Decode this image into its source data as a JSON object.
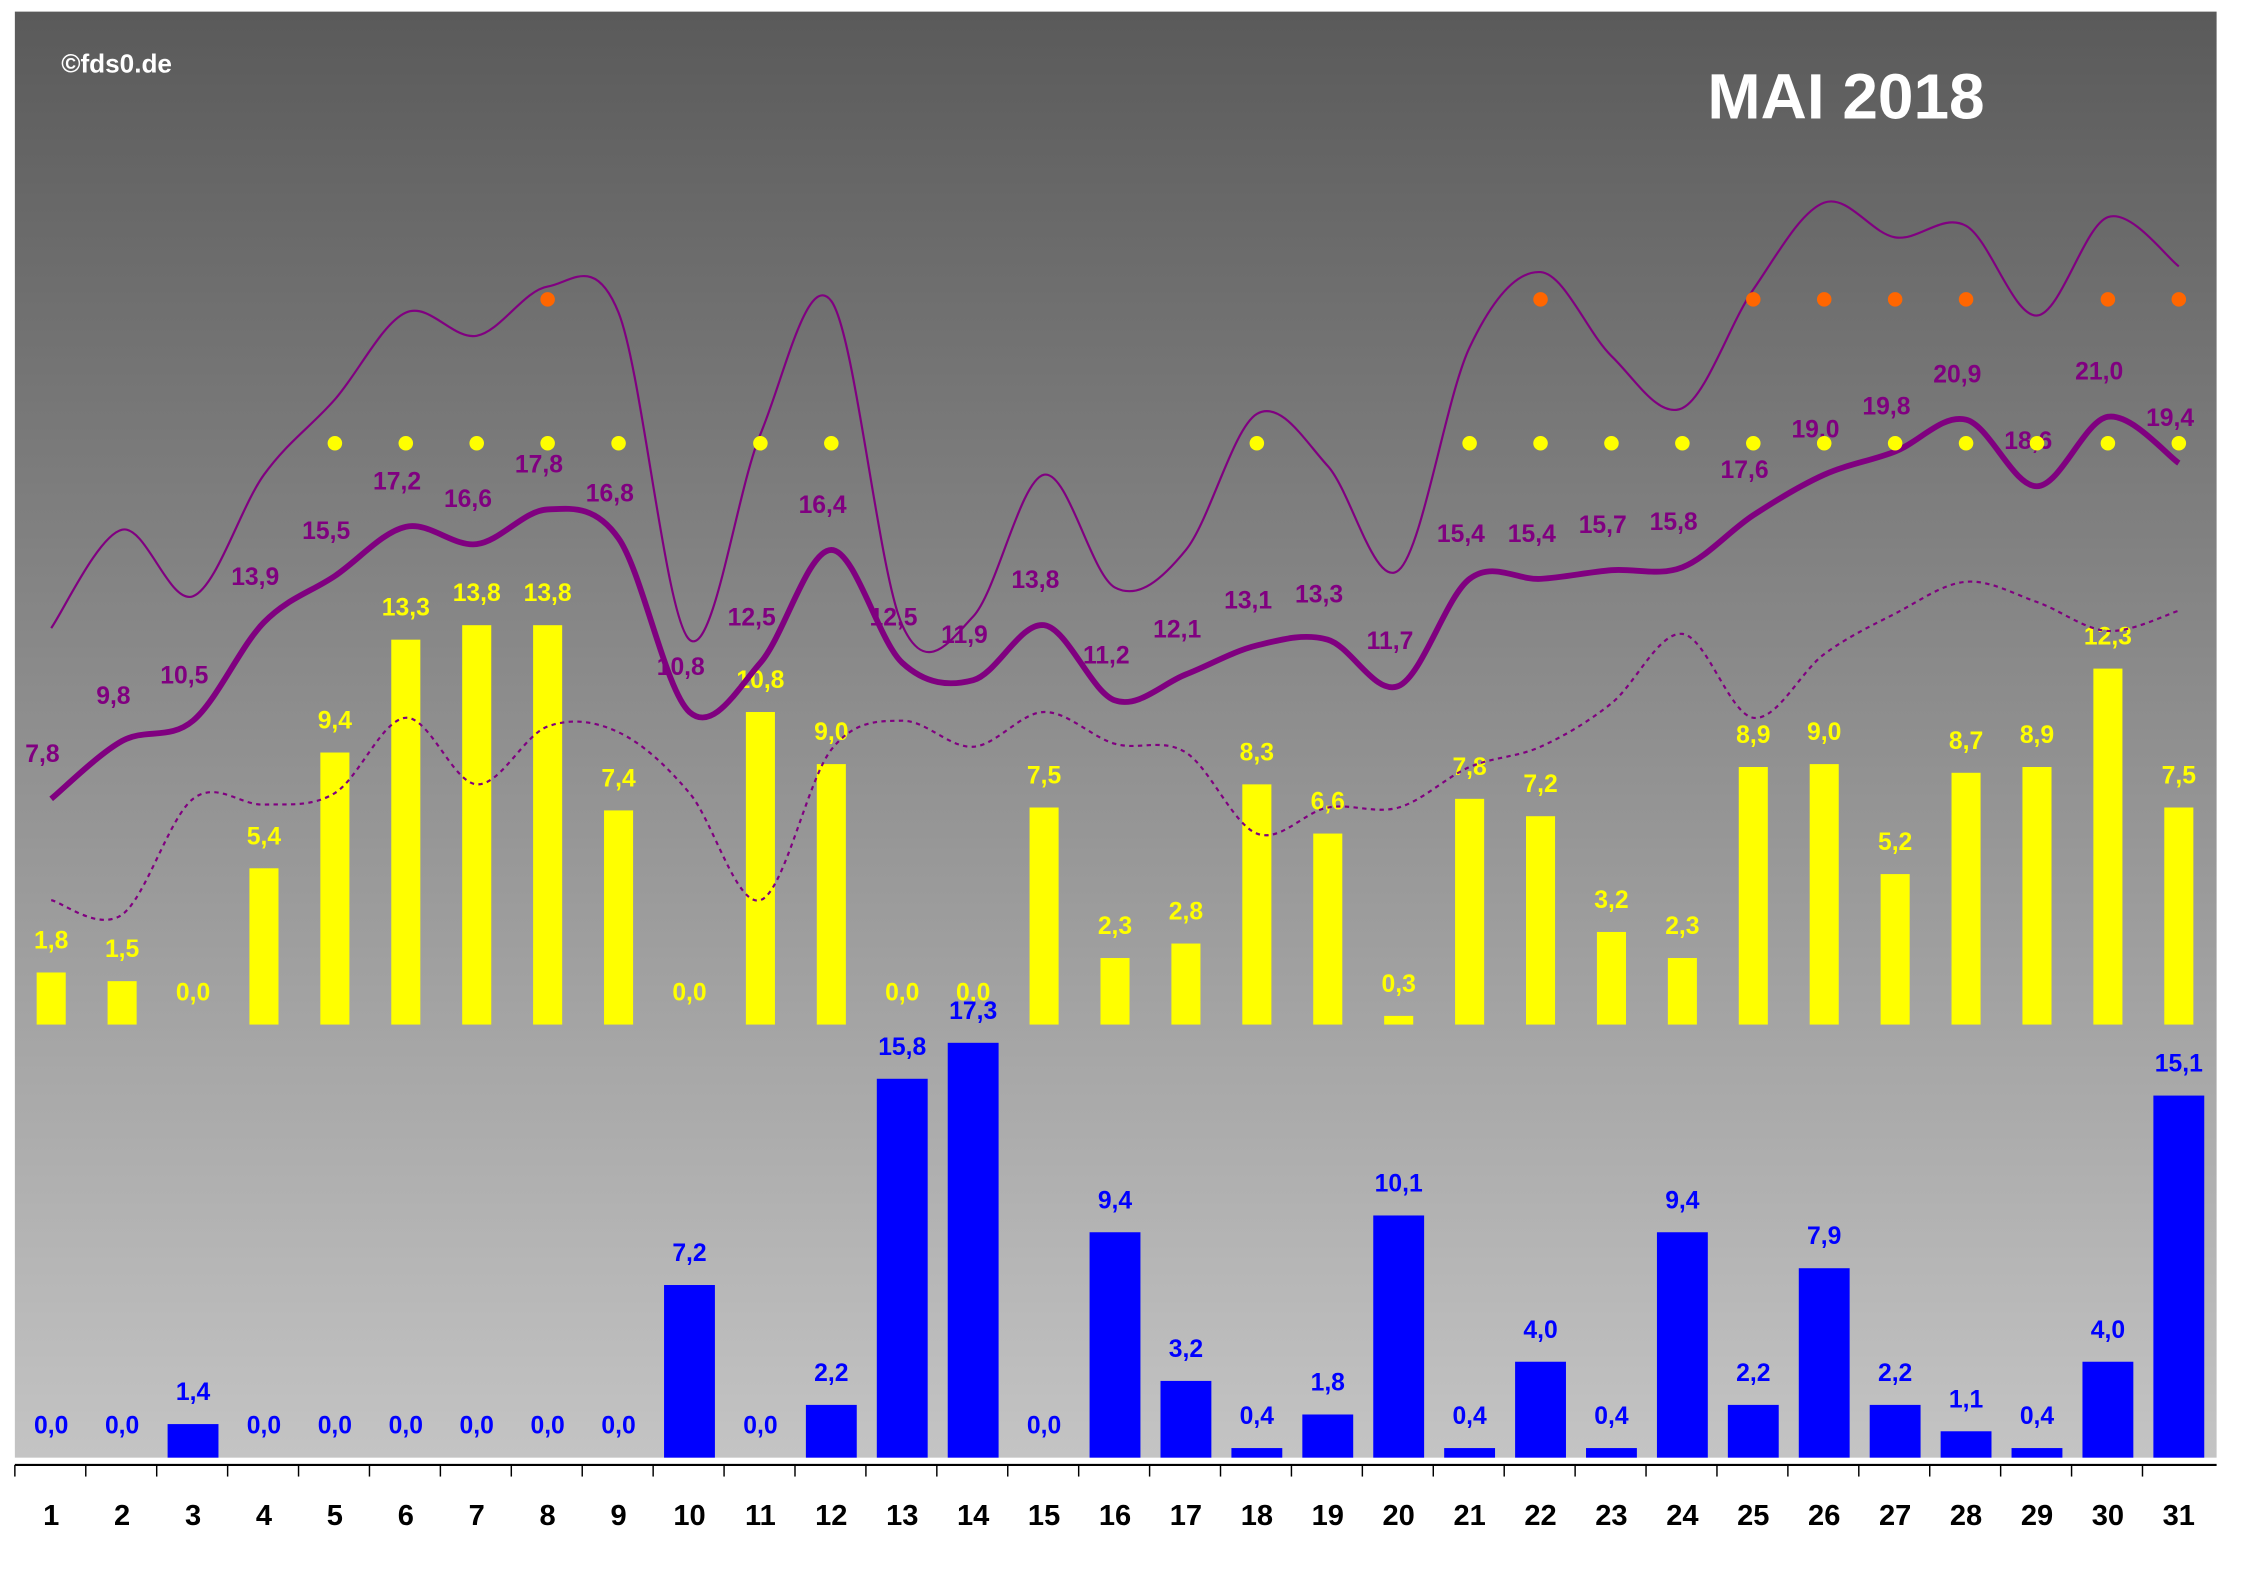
{
  "chart_data": {
    "type": "bar",
    "title": "MAI 2018",
    "credit": "©fds0.de",
    "categories": [
      "1",
      "2",
      "3",
      "4",
      "5",
      "6",
      "7",
      "8",
      "9",
      "10",
      "11",
      "12",
      "13",
      "14",
      "15",
      "16",
      "17",
      "18",
      "19",
      "20",
      "21",
      "22",
      "23",
      "24",
      "25",
      "26",
      "27",
      "28",
      "29",
      "30",
      "31"
    ],
    "ylim": [
      0,
      35
    ],
    "y2lim": [
      0,
      18
    ],
    "series": [
      {
        "type": "bar",
        "color": "#ffff00",
        "values": [
          1.8,
          1.5,
          0.0,
          5.4,
          9.4,
          13.3,
          13.8,
          13.8,
          7.4,
          0.0,
          10.8,
          9.0,
          0.0,
          0.0,
          7.5,
          2.3,
          2.8,
          8.3,
          6.6,
          0.3,
          7.8,
          7.2,
          3.2,
          2.3,
          8.9,
          9.0,
          5.2,
          8.7,
          8.9,
          12.3,
          7.5
        ],
        "value_labels": [
          "1,8",
          "1,5",
          "0,0",
          "5,4",
          "9,4",
          "13,3",
          "13,8",
          "13,8",
          "7,4",
          "0,0",
          "10,8",
          "9,0",
          "0,0",
          "0,0",
          "7,5",
          "2,3",
          "2,8",
          "8,3",
          "6,6",
          "0,3",
          "7,8",
          "7,2",
          "3,2",
          "2,3",
          "8,9",
          "9,0",
          "5,2",
          "8,7",
          "8,9",
          "12,3",
          "7,5"
        ]
      },
      {
        "type": "bar",
        "color": "#0000ff",
        "axis": "y2",
        "values": [
          0.0,
          0.0,
          1.4,
          0.0,
          0.0,
          0.0,
          0.0,
          0.0,
          0.0,
          7.2,
          0.0,
          2.2,
          15.8,
          17.3,
          0.0,
          9.4,
          3.2,
          0.4,
          1.8,
          10.1,
          0.4,
          4.0,
          0.4,
          9.4,
          2.2,
          7.9,
          2.2,
          1.1,
          0.4,
          4.0,
          15.1
        ],
        "value_labels": [
          "0,0",
          "0,0",
          "1,4",
          "0,0",
          "0,0",
          "0,0",
          "0,0",
          "0,0",
          "0,0",
          "7,2",
          "0,0",
          "2,2",
          "15,8",
          "17,3",
          "0,0",
          "9,4",
          "3,2",
          "0,4",
          "1,8",
          "10,1",
          "0,4",
          "4,0",
          "0,4",
          "9,4",
          "2,2",
          "7,9",
          "2,2",
          "1,1",
          "0,4",
          "4,0",
          "15,1"
        ]
      },
      {
        "type": "line",
        "color": "#800080",
        "width": 4,
        "values": [
          7.8,
          9.8,
          10.5,
          13.9,
          15.5,
          17.2,
          16.6,
          17.8,
          16.8,
          10.8,
          12.5,
          16.4,
          12.5,
          11.9,
          13.8,
          11.2,
          12.1,
          13.1,
          13.3,
          11.7,
          15.4,
          15.4,
          15.7,
          15.8,
          17.6,
          19.0,
          19.8,
          20.9,
          18.6,
          21.0,
          19.4
        ],
        "value_labels": [
          "7,8",
          "9,8",
          "10,5",
          "13,9",
          "15,5",
          "17,2",
          "16,6",
          "17,8",
          "16,8",
          "10,8",
          "12,5",
          "16,4",
          "12,5",
          "11,9",
          "13,8",
          "11,2",
          "12,1",
          "13,1",
          "13,3",
          "11,7",
          "15,4",
          "15,4",
          "15,7",
          "15,8",
          "17,6",
          "19,0",
          "19,8",
          "20,9",
          "18,6",
          "21,0",
          "19,4"
        ]
      },
      {
        "type": "line",
        "color": "#800080",
        "width": 1.5,
        "values": [
          13.7,
          17.1,
          14.8,
          19.0,
          21.6,
          24.6,
          23.8,
          25.5,
          24.6,
          13.3,
          20.4,
          25.0,
          13.8,
          14.1,
          19.0,
          15.1,
          16.4,
          21.1,
          19.3,
          15.7,
          23.4,
          26.0,
          23.1,
          21.3,
          25.4,
          28.4,
          27.2,
          27.6,
          24.5,
          27.9,
          26.2
        ]
      },
      {
        "type": "line",
        "color": "#800080",
        "width": 1.5,
        "dashed": true,
        "values": [
          4.3,
          3.8,
          7.8,
          7.6,
          8.0,
          10.6,
          8.3,
          10.3,
          10.1,
          8.0,
          4.3,
          9.5,
          10.5,
          9.6,
          10.8,
          9.7,
          9.4,
          6.6,
          7.5,
          7.5,
          8.9,
          9.6,
          11.1,
          13.5,
          10.6,
          12.8,
          14.2,
          15.3,
          14.6,
          13.6,
          14.3
        ]
      }
    ],
    "dots": [
      {
        "color": "#ffff00",
        "days": [
          5,
          6,
          7,
          8,
          9,
          11,
          12,
          18,
          21,
          22,
          23,
          24,
          25,
          26,
          27,
          28,
          29,
          30,
          31
        ]
      },
      {
        "color": "#ff6600",
        "days": [
          8,
          22,
          25,
          26,
          27,
          28,
          30,
          31
        ]
      }
    ]
  }
}
